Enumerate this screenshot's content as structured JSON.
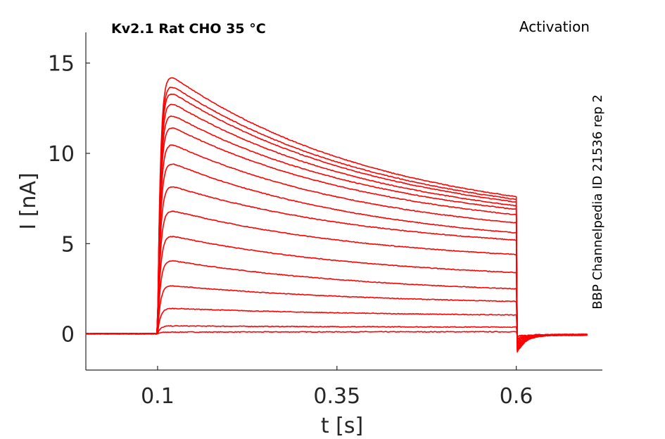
{
  "chart_data": {
    "type": "line",
    "title": "Kv2.1  Rat  CHO  35 °C",
    "protocol_label": "Activation",
    "side_label": "BBP Channelpedia ID 21536 rep 2",
    "xlabel": "t [s]",
    "ylabel": "I [nA]",
    "xlim": [
      0.0,
      0.72
    ],
    "ylim": [
      -2.0,
      16.7
    ],
    "xticks": [
      0.1,
      0.35,
      0.6
    ],
    "xtick_labels": [
      "0.1",
      "0.35",
      "0.6"
    ],
    "yticks": [
      0,
      5,
      10,
      15
    ],
    "ytick_labels": [
      "0",
      "5",
      "10",
      "15"
    ],
    "grid": false,
    "legend": "none",
    "line_color": "#ff0000",
    "pulse_start_s": 0.1,
    "pulse_end_s": 0.6,
    "series": [
      {
        "peak": 0.1,
        "end": 0.12
      },
      {
        "peak": 0.45,
        "end": 0.38
      },
      {
        "peak": 1.45,
        "end": 1.05
      },
      {
        "peak": 2.75,
        "end": 1.8
      },
      {
        "peak": 4.2,
        "end": 2.5
      },
      {
        "peak": 5.6,
        "end": 3.4
      },
      {
        "peak": 7.05,
        "end": 4.4
      },
      {
        "peak": 8.45,
        "end": 5.2
      },
      {
        "peak": 9.8,
        "end": 5.6
      },
      {
        "peak": 10.9,
        "end": 6.15
      },
      {
        "peak": 11.9,
        "end": 6.6
      },
      {
        "peak": 12.6,
        "end": 6.9
      },
      {
        "peak": 13.3,
        "end": 7.1
      },
      {
        "peak": 13.9,
        "end": 7.3
      },
      {
        "peak": 14.3,
        "end": 7.45
      },
      {
        "peak": 14.85,
        "end": 7.6
      }
    ]
  }
}
